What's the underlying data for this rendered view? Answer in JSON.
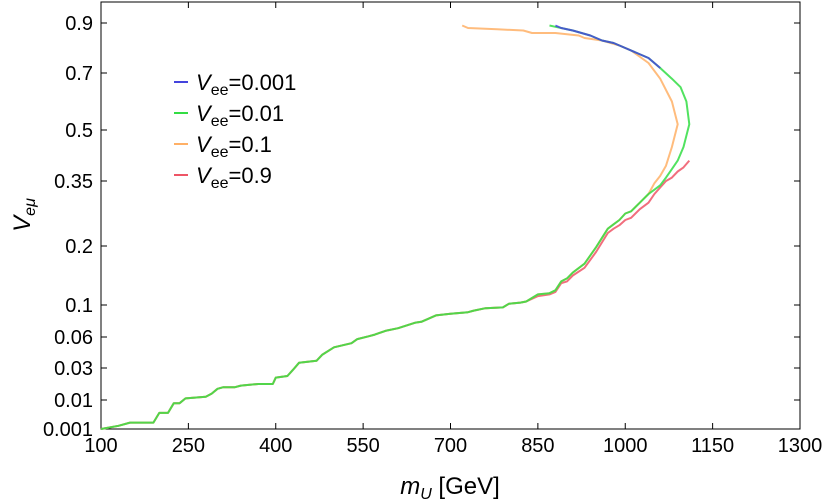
{
  "chart_data": {
    "type": "line",
    "xlabel": {
      "var": "m",
      "sub": "U",
      "unit": " [GeV]"
    },
    "ylabel": {
      "var": "V",
      "sub": "eμ"
    },
    "x_ticks": [
      100,
      250,
      400,
      550,
      700,
      850,
      1000,
      1150,
      1300
    ],
    "y_ticks": [
      {
        "v": 0.001,
        "label": "0.001"
      },
      {
        "v": 0.01,
        "label": "0.01"
      },
      {
        "v": 0.03,
        "label": "0.03"
      },
      {
        "v": 0.06,
        "label": "0.06"
      },
      {
        "v": 0.1,
        "label": "0.1"
      },
      {
        "v": 0.2,
        "label": "0.2"
      },
      {
        "v": 0.35,
        "label": "0.35"
      },
      {
        "v": 0.5,
        "label": "0.5"
      },
      {
        "v": 0.7,
        "label": "0.7"
      },
      {
        "v": 0.9,
        "label": "0.9"
      }
    ],
    "xlim": [
      100,
      1300
    ],
    "legend_position": "upper-left",
    "series": [
      {
        "name": "0.9",
        "legend_var": "V",
        "legend_sub": "ee",
        "color": "#ee5566",
        "points": [
          [
            100,
            0.001
          ],
          [
            130,
            0.002
          ],
          [
            150,
            0.003
          ],
          [
            190,
            0.003
          ],
          [
            200,
            0.006
          ],
          [
            215,
            0.006
          ],
          [
            225,
            0.009
          ],
          [
            235,
            0.009
          ],
          [
            245,
            0.011
          ],
          [
            280,
            0.012
          ],
          [
            290,
            0.014
          ],
          [
            300,
            0.017
          ],
          [
            310,
            0.018
          ],
          [
            330,
            0.018
          ],
          [
            340,
            0.019
          ],
          [
            370,
            0.02
          ],
          [
            395,
            0.02
          ],
          [
            400,
            0.024
          ],
          [
            420,
            0.025
          ],
          [
            430,
            0.029
          ],
          [
            440,
            0.035
          ],
          [
            470,
            0.037
          ],
          [
            480,
            0.043
          ],
          [
            500,
            0.05
          ],
          [
            530,
            0.054
          ],
          [
            540,
            0.058
          ],
          [
            560,
            0.061
          ],
          [
            570,
            0.063
          ],
          [
            590,
            0.068
          ],
          [
            610,
            0.071
          ],
          [
            640,
            0.078
          ],
          [
            650,
            0.079
          ],
          [
            675,
            0.087
          ],
          [
            700,
            0.089
          ],
          [
            730,
            0.091
          ],
          [
            740,
            0.093
          ],
          [
            760,
            0.096
          ],
          [
            790,
            0.097
          ],
          [
            800,
            0.102
          ],
          [
            820,
            0.104
          ],
          [
            830,
            0.106
          ],
          [
            850,
            0.115
          ],
          [
            870,
            0.118
          ],
          [
            880,
            0.122
          ],
          [
            890,
            0.137
          ],
          [
            900,
            0.14
          ],
          [
            910,
            0.15
          ],
          [
            930,
            0.163
          ],
          [
            950,
            0.19
          ],
          [
            970,
            0.23
          ],
          [
            980,
            0.24
          ],
          [
            990,
            0.248
          ],
          [
            1000,
            0.26
          ],
          [
            1010,
            0.265
          ],
          [
            1025,
            0.285
          ],
          [
            1040,
            0.3
          ],
          [
            1050,
            0.32
          ],
          [
            1060,
            0.335
          ],
          [
            1070,
            0.35
          ],
          [
            1080,
            0.36
          ],
          [
            1090,
            0.378
          ],
          [
            1100,
            0.39
          ],
          [
            1110,
            0.41
          ]
        ]
      },
      {
        "name": "0.1",
        "legend_var": "V",
        "legend_sub": "ee",
        "color": "#ffb066",
        "points": [
          [
            100,
            0.001
          ],
          [
            130,
            0.002
          ],
          [
            150,
            0.003
          ],
          [
            190,
            0.003
          ],
          [
            200,
            0.006
          ],
          [
            215,
            0.006
          ],
          [
            225,
            0.009
          ],
          [
            235,
            0.009
          ],
          [
            245,
            0.011
          ],
          [
            280,
            0.012
          ],
          [
            290,
            0.014
          ],
          [
            300,
            0.017
          ],
          [
            310,
            0.018
          ],
          [
            330,
            0.018
          ],
          [
            340,
            0.019
          ],
          [
            370,
            0.02
          ],
          [
            395,
            0.02
          ],
          [
            400,
            0.024
          ],
          [
            420,
            0.025
          ],
          [
            430,
            0.029
          ],
          [
            440,
            0.035
          ],
          [
            470,
            0.037
          ],
          [
            480,
            0.043
          ],
          [
            500,
            0.05
          ],
          [
            530,
            0.054
          ],
          [
            540,
            0.058
          ],
          [
            560,
            0.061
          ],
          [
            570,
            0.063
          ],
          [
            590,
            0.068
          ],
          [
            610,
            0.071
          ],
          [
            640,
            0.078
          ],
          [
            650,
            0.079
          ],
          [
            675,
            0.087
          ],
          [
            700,
            0.089
          ],
          [
            730,
            0.091
          ],
          [
            740,
            0.093
          ],
          [
            760,
            0.096
          ],
          [
            790,
            0.097
          ],
          [
            800,
            0.102
          ],
          [
            820,
            0.104
          ],
          [
            830,
            0.106
          ],
          [
            850,
            0.118
          ],
          [
            870,
            0.12
          ],
          [
            880,
            0.125
          ],
          [
            890,
            0.14
          ],
          [
            900,
            0.145
          ],
          [
            910,
            0.155
          ],
          [
            930,
            0.17
          ],
          [
            950,
            0.198
          ],
          [
            970,
            0.24
          ],
          [
            980,
            0.25
          ],
          [
            990,
            0.26
          ],
          [
            1000,
            0.275
          ],
          [
            1010,
            0.28
          ],
          [
            1025,
            0.3
          ],
          [
            1040,
            0.32
          ],
          [
            1050,
            0.345
          ],
          [
            1060,
            0.365
          ],
          [
            1070,
            0.395
          ],
          [
            1080,
            0.45
          ],
          [
            1090,
            0.52
          ],
          [
            1080,
            0.6
          ],
          [
            1060,
            0.68
          ],
          [
            1040,
            0.74
          ],
          [
            1010,
            0.79
          ],
          [
            990,
            0.81
          ],
          [
            960,
            0.83
          ],
          [
            930,
            0.84
          ],
          [
            920,
            0.85
          ],
          [
            900,
            0.855
          ],
          [
            880,
            0.86
          ],
          [
            840,
            0.86
          ],
          [
            825,
            0.87
          ],
          [
            780,
            0.875
          ],
          [
            730,
            0.88
          ],
          [
            720,
            0.89
          ]
        ]
      },
      {
        "name": "0.01",
        "legend_var": "V",
        "legend_sub": "ee",
        "color": "#33dd44",
        "points": [
          [
            100,
            0.001
          ],
          [
            130,
            0.002
          ],
          [
            150,
            0.003
          ],
          [
            190,
            0.003
          ],
          [
            200,
            0.006
          ],
          [
            215,
            0.006
          ],
          [
            225,
            0.009
          ],
          [
            235,
            0.009
          ],
          [
            245,
            0.011
          ],
          [
            280,
            0.012
          ],
          [
            290,
            0.014
          ],
          [
            300,
            0.017
          ],
          [
            310,
            0.018
          ],
          [
            330,
            0.018
          ],
          [
            340,
            0.019
          ],
          [
            370,
            0.02
          ],
          [
            395,
            0.02
          ],
          [
            400,
            0.024
          ],
          [
            420,
            0.025
          ],
          [
            430,
            0.029
          ],
          [
            440,
            0.035
          ],
          [
            470,
            0.037
          ],
          [
            480,
            0.043
          ],
          [
            500,
            0.05
          ],
          [
            530,
            0.054
          ],
          [
            540,
            0.058
          ],
          [
            560,
            0.061
          ],
          [
            570,
            0.063
          ],
          [
            590,
            0.068
          ],
          [
            610,
            0.071
          ],
          [
            640,
            0.078
          ],
          [
            650,
            0.079
          ],
          [
            675,
            0.087
          ],
          [
            700,
            0.089
          ],
          [
            730,
            0.091
          ],
          [
            740,
            0.093
          ],
          [
            760,
            0.096
          ],
          [
            790,
            0.097
          ],
          [
            800,
            0.102
          ],
          [
            820,
            0.104
          ],
          [
            830,
            0.106
          ],
          [
            850,
            0.118
          ],
          [
            870,
            0.12
          ],
          [
            880,
            0.125
          ],
          [
            890,
            0.14
          ],
          [
            900,
            0.145
          ],
          [
            910,
            0.155
          ],
          [
            930,
            0.17
          ],
          [
            950,
            0.198
          ],
          [
            970,
            0.24
          ],
          [
            980,
            0.25
          ],
          [
            990,
            0.26
          ],
          [
            1000,
            0.275
          ],
          [
            1010,
            0.28
          ],
          [
            1025,
            0.3
          ],
          [
            1040,
            0.32
          ],
          [
            1050,
            0.33
          ],
          [
            1060,
            0.34
          ],
          [
            1070,
            0.36
          ],
          [
            1080,
            0.385
          ],
          [
            1090,
            0.41
          ],
          [
            1100,
            0.45
          ],
          [
            1110,
            0.52
          ],
          [
            1105,
            0.6
          ],
          [
            1095,
            0.65
          ],
          [
            1080,
            0.68
          ],
          [
            1060,
            0.72
          ],
          [
            1040,
            0.76
          ],
          [
            1020,
            0.78
          ],
          [
            1000,
            0.8
          ],
          [
            980,
            0.82
          ],
          [
            960,
            0.83
          ],
          [
            940,
            0.85
          ],
          [
            910,
            0.87
          ],
          [
            890,
            0.88
          ],
          [
            880,
            0.885
          ],
          [
            870,
            0.89
          ]
        ]
      },
      {
        "name": "0.001",
        "legend_var": "V",
        "legend_sub": "ee",
        "color": "#4444dd",
        "points": [
          [
            1060,
            0.72
          ],
          [
            1040,
            0.76
          ],
          [
            1020,
            0.78
          ],
          [
            1000,
            0.8
          ],
          [
            980,
            0.82
          ],
          [
            960,
            0.83
          ],
          [
            940,
            0.85
          ],
          [
            910,
            0.87
          ],
          [
            890,
            0.88
          ],
          [
            880,
            0.89
          ]
        ]
      }
    ]
  }
}
